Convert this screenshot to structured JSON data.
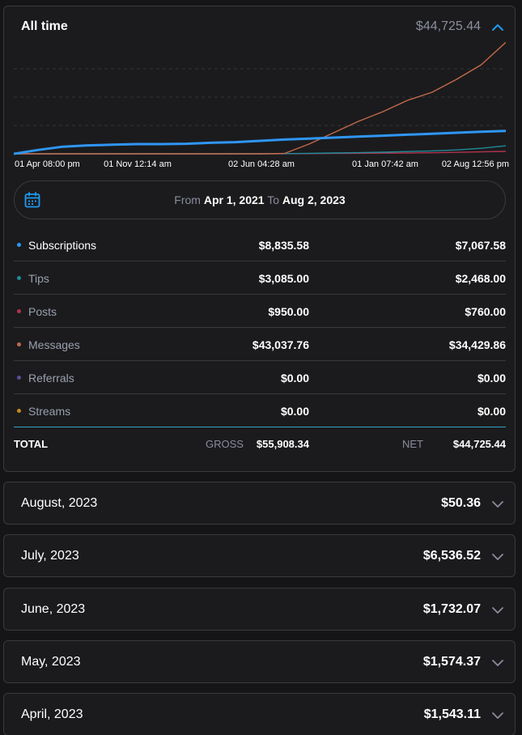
{
  "summary": {
    "title": "All time",
    "total": "$44,725.44",
    "expand_icon": "chevron-up-icon",
    "accent": "#1d9bf0"
  },
  "chart_data": {
    "type": "line",
    "x_tick_labels": [
      "01 Apr 08:00 pm",
      "01 Nov 12:14 am",
      "02 Jun 04:28 am",
      "01 Jan 07:42 am",
      "02 Aug 12:56 pm"
    ],
    "x": [
      0,
      0.05,
      0.1,
      0.15,
      0.2,
      0.25,
      0.3,
      0.35,
      0.4,
      0.45,
      0.5,
      0.55,
      0.6,
      0.65,
      0.7,
      0.75,
      0.8,
      0.85,
      0.9,
      0.95,
      1.0
    ],
    "series": [
      {
        "color": "#2f96f5",
        "values": [
          0,
          1200,
          2200,
          2600,
          2800,
          3000,
          3000,
          3100,
          3400,
          3600,
          4000,
          4400,
          4700,
          5000,
          5300,
          5600,
          5900,
          6200,
          6500,
          6800,
          7067.58
        ]
      },
      {
        "color": "#c4694a",
        "values": [
          0,
          0,
          0,
          0,
          0,
          0,
          0,
          0,
          0,
          0,
          0,
          100,
          3000,
          6500,
          10000,
          13000,
          16500,
          19000,
          23000,
          27500,
          34429.86
        ]
      },
      {
        "color": "#1f8a99",
        "values": [
          0,
          0,
          0,
          0,
          0,
          0,
          0,
          0,
          0,
          0,
          0,
          50,
          150,
          250,
          350,
          500,
          700,
          900,
          1200,
          1700,
          2468
        ]
      },
      {
        "color": "#b0344f",
        "values": [
          0,
          0,
          0,
          0,
          0,
          0,
          0,
          0,
          0,
          0,
          0,
          20,
          60,
          100,
          150,
          200,
          260,
          330,
          450,
          600,
          760
        ]
      }
    ],
    "ylim": [
      0,
      35000
    ],
    "grid": true
  },
  "date_range": {
    "from_label": "From",
    "from_value": "Apr 1, 2021",
    "to_label": "To",
    "to_value": "Aug 2, 2023",
    "icon": "calendar-icon"
  },
  "breakdown": [
    {
      "label": "Subscriptions",
      "gross": "$8,835.58",
      "net": "$7,067.58",
      "color": "#2f96f5"
    },
    {
      "label": "Tips",
      "gross": "$3,085.00",
      "net": "$2,468.00",
      "color": "#1f8a99"
    },
    {
      "label": "Posts",
      "gross": "$950.00",
      "net": "$760.00",
      "color": "#b0344f"
    },
    {
      "label": "Messages",
      "gross": "$43,037.76",
      "net": "$34,429.86",
      "color": "#c4694a"
    },
    {
      "label": "Referrals",
      "gross": "$0.00",
      "net": "$0.00",
      "color": "#5a4e9a"
    },
    {
      "label": "Streams",
      "gross": "$0.00",
      "net": "$0.00",
      "color": "#c48a1e"
    }
  ],
  "totals": {
    "label": "TOTAL",
    "gross_caption": "GROSS",
    "gross": "$55,908.34",
    "net_caption": "NET",
    "net": "$44,725.44"
  },
  "months": [
    {
      "label": "August, 2023",
      "amount": "$50.36"
    },
    {
      "label": "July, 2023",
      "amount": "$6,536.52"
    },
    {
      "label": "June, 2023",
      "amount": "$1,732.07"
    },
    {
      "label": "May, 2023",
      "amount": "$1,574.37"
    },
    {
      "label": "April, 2023",
      "amount": "$1,543.11"
    }
  ]
}
